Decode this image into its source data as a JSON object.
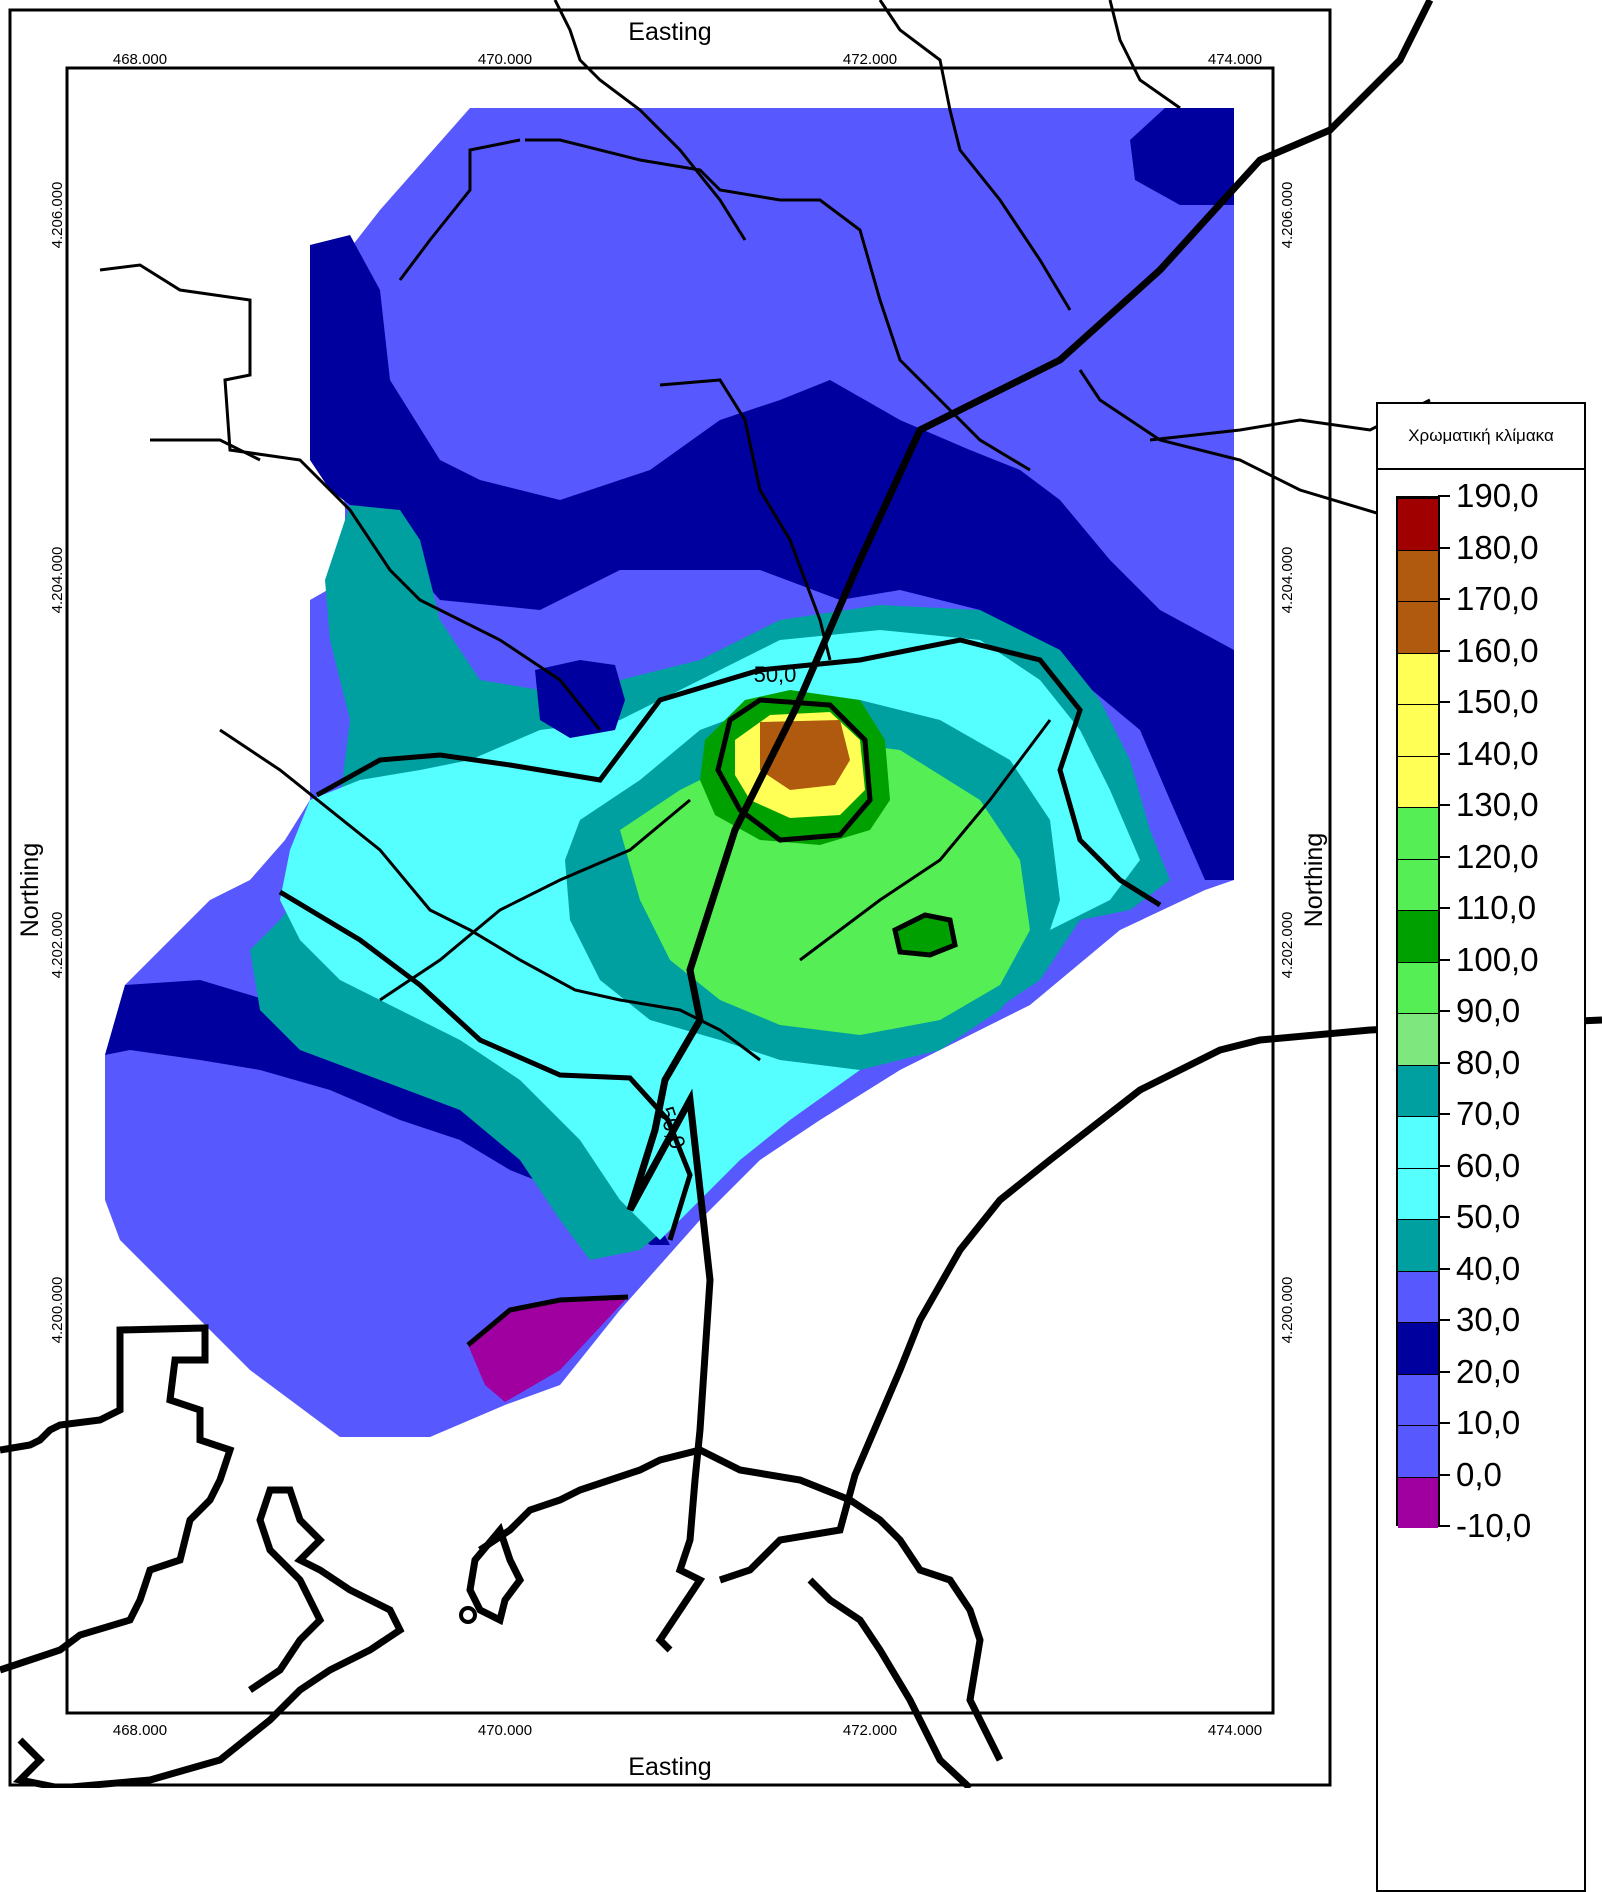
{
  "axes": {
    "x_title": "Easting",
    "y_title": "Northing",
    "x_ticks": [
      "468.000",
      "470.000",
      "472.000",
      "474.000"
    ],
    "y_ticks": [
      "4.206.000",
      "4.204.000",
      "4.202.000",
      "4.200.000"
    ]
  },
  "contour_labels": [
    "50,0",
    "50,0"
  ],
  "legend": {
    "title": "Χρωματική κλίμακα",
    "levels": [
      "190,0",
      "180,0",
      "170,0",
      "160,0",
      "150,0",
      "140,0",
      "130,0",
      "120,0",
      "110,0",
      "100,0",
      "90,0",
      "80,0",
      "70,0",
      "60,0",
      "50,0",
      "40,0",
      "30,0",
      "20,0",
      "10,0",
      "0,0",
      "-10,0"
    ],
    "colors": [
      "#a00000",
      "#b05a10",
      "#b05a10",
      "#ffff55",
      "#ffff55",
      "#ffff55",
      "#55ee55",
      "#55ee55",
      "#00a000",
      "#55ee55",
      "#7ee87e",
      "#00a0a0",
      "#55ffff",
      "#55ffff",
      "#00a0a0",
      "#5858ff",
      "#00009f",
      "#5858ff",
      "#5858ff",
      "#a000a0"
    ]
  }
}
